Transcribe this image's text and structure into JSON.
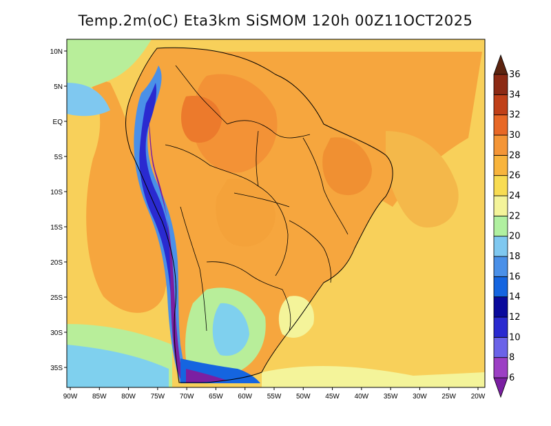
{
  "title": "Temp.2m(oC) Eta3km SiSMOM 120h 00Z11OCT2025",
  "x_axis_labels": [
    "90W",
    "85W",
    "80W",
    "75W",
    "70W",
    "65W",
    "60W",
    "55W",
    "50W",
    "45W",
    "40W",
    "35W",
    "30W",
    "25W",
    "20W"
  ],
  "y_axis_labels": [
    "10N",
    "5N",
    "EQ",
    "5S",
    "10S",
    "15S",
    "20S",
    "25S",
    "30S",
    "35S"
  ],
  "colorbar": {
    "levels": [
      6,
      8,
      10,
      12,
      14,
      16,
      18,
      20,
      22,
      24,
      26,
      28,
      30,
      32,
      34,
      36
    ],
    "labels": [
      "6",
      "8",
      "10",
      "12",
      "14",
      "16",
      "18",
      "20",
      "22",
      "24",
      "26",
      "28",
      "30",
      "32",
      "34",
      "36"
    ],
    "colors": [
      "#7b1fa2",
      "#9c3fc4",
      "#6b63e8",
      "#2a2ad0",
      "#0a0a9c",
      "#1565e0",
      "#4a90e8",
      "#7fc8f0",
      "#b0f0a0",
      "#f4f49a",
      "#f8dc52",
      "#f8b43c",
      "#f49536",
      "#e86826",
      "#c04018",
      "#8c2a14",
      "#5c2410"
    ]
  }
}
